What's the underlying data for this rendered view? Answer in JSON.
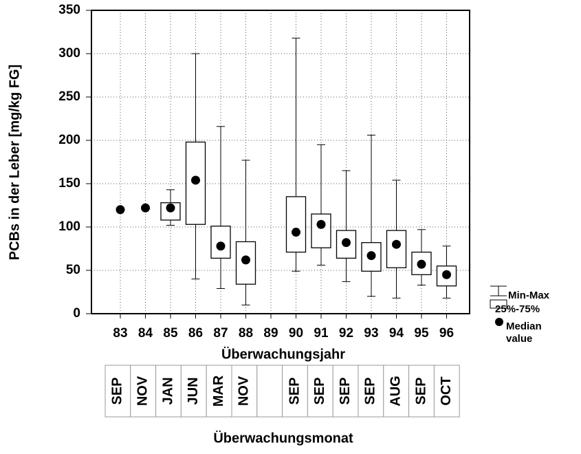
{
  "chart_data": {
    "type": "box",
    "y_label": "PCBs in der Leber [mg/kg FG]",
    "x_label": "Überwachungsjahr",
    "month_label": "Überwachungsmonat",
    "categories": [
      "83",
      "84",
      "85",
      "86",
      "87",
      "88",
      "89",
      "90",
      "91",
      "92",
      "93",
      "94",
      "95",
      "96"
    ],
    "months": [
      "SEP",
      "NOV",
      "JAN",
      "JUN",
      "MAR",
      "NOV",
      null,
      "SEP",
      "SEP",
      "SEP",
      "SEP",
      "AUG",
      "SEP",
      "OCT"
    ],
    "ylim": [
      0,
      350
    ],
    "yticks": [
      0,
      50,
      100,
      150,
      200,
      250,
      300,
      350
    ],
    "grid": true,
    "series": [
      {
        "name": "Min-Max",
        "min": [
          null,
          null,
          102,
          40,
          29,
          10,
          null,
          49,
          56,
          37,
          20,
          18,
          33,
          18
        ],
        "max": [
          null,
          null,
          143,
          300,
          216,
          177,
          null,
          318,
          195,
          165,
          206,
          154,
          97,
          78
        ]
      },
      {
        "name": "25%-75%",
        "q1": [
          null,
          null,
          108,
          103,
          64,
          34,
          null,
          71,
          76,
          64,
          49,
          53,
          45,
          32
        ],
        "q3": [
          null,
          null,
          128,
          198,
          101,
          83,
          null,
          135,
          115,
          96,
          82,
          96,
          71,
          55
        ]
      },
      {
        "name": "Median value",
        "color": "#000000",
        "values": [
          120,
          122,
          122,
          154,
          78,
          62,
          null,
          94,
          103,
          82,
          67,
          80,
          57,
          45
        ]
      }
    ]
  }
}
